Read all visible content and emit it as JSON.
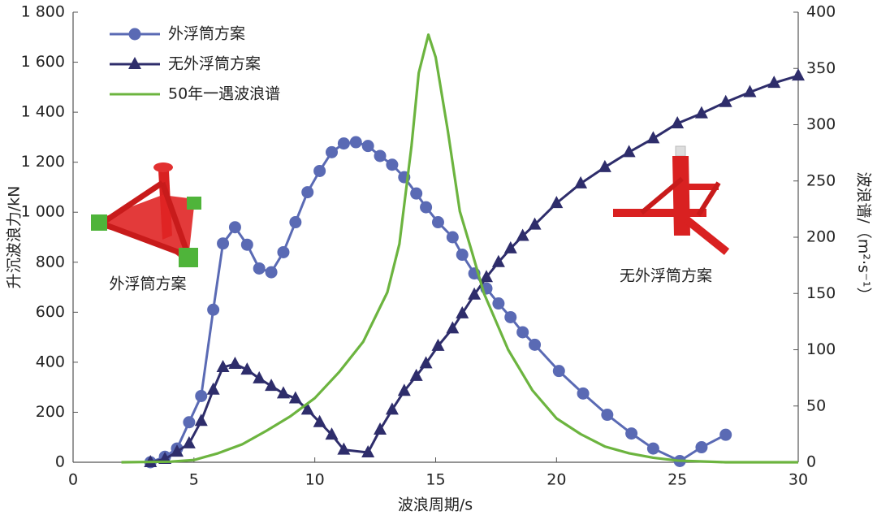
{
  "chart_data": {
    "type": "line",
    "xlabel": "波浪周期/s",
    "ylabel": "升沉波浪力/kN",
    "y2label": "波浪谱/（m²·s⁻¹）",
    "xlim": [
      0,
      30
    ],
    "xticks": [
      0,
      5,
      10,
      15,
      20,
      25,
      30
    ],
    "ylim": [
      0,
      1800
    ],
    "yticks": [
      0,
      200,
      400,
      600,
      800,
      {
        "value": 1000,
        "label": "1 000"
      },
      {
        "value": 1200,
        "label": "1 200"
      },
      {
        "value": 1400,
        "label": "1 400"
      },
      {
        "value": 1600,
        "label": "1 600"
      },
      {
        "value": 1800,
        "label": "1 800"
      }
    ],
    "y2lim": [
      0,
      400
    ],
    "y2ticks": [
      0,
      50,
      100,
      150,
      200,
      250,
      300,
      350,
      400
    ],
    "legend": "upper left",
    "grid": false,
    "series": [
      {
        "name": "外浮筒方案",
        "color": "#5a6ab4",
        "marker": "circle",
        "x": [
          3.2,
          3.8,
          4.3,
          4.8,
          5.3,
          5.8,
          6.2,
          6.7,
          7.2,
          7.7,
          8.2,
          8.7,
          9.2,
          9.7,
          10.2,
          10.7,
          11.2,
          11.7,
          12.2,
          12.7,
          13.2,
          13.7,
          14.2,
          14.6,
          15.1,
          15.7,
          16.1,
          16.6,
          17.1,
          17.6,
          18.1,
          18.6,
          19.1,
          20.1,
          21.1,
          22.1,
          23.1,
          24.0,
          25.1,
          26.0,
          27.0
        ],
        "values": [
          0,
          22,
          55,
          160,
          265,
          610,
          875,
          940,
          870,
          775,
          760,
          840,
          960,
          1080,
          1165,
          1240,
          1275,
          1280,
          1265,
          1225,
          1190,
          1140,
          1075,
          1020,
          960,
          900,
          830,
          755,
          695,
          635,
          580,
          520,
          470,
          365,
          275,
          190,
          115,
          55,
          5,
          60,
          110
        ]
      },
      {
        "name": "无外浮筒方案",
        "color": "#2e2d6b",
        "marker": "triangle",
        "x": [
          3.2,
          3.8,
          4.3,
          4.8,
          5.3,
          5.8,
          6.2,
          6.7,
          7.2,
          7.7,
          8.2,
          8.7,
          9.2,
          9.7,
          10.2,
          10.7,
          11.2,
          12.2,
          12.7,
          13.2,
          13.7,
          14.2,
          14.6,
          15.1,
          15.7,
          16.1,
          16.6,
          17.1,
          17.6,
          18.1,
          18.6,
          19.1,
          20.0,
          21.0,
          22.0,
          23.0,
          24.0,
          25.0,
          26.0,
          27.0,
          28.0,
          29.0,
          30.0
        ],
        "values": [
          0,
          13,
          42,
          75,
          165,
          290,
          380,
          393,
          370,
          335,
          305,
          275,
          255,
          210,
          160,
          110,
          50,
          39,
          130,
          210,
          285,
          345,
          395,
          465,
          535,
          595,
          670,
          740,
          800,
          855,
          905,
          950,
          1036,
          1115,
          1180,
          1240,
          1295,
          1355,
          1395,
          1440,
          1480,
          1517,
          1546
        ]
      },
      {
        "name": "50年一遇波浪谱",
        "color": "#6cb43f",
        "axis": "y2",
        "x": [
          2,
          4,
          5,
          6,
          7,
          8,
          9,
          10,
          11,
          12,
          13,
          13.5,
          14,
          14.3,
          14.7,
          15,
          15.5,
          16,
          16.5,
          17,
          18,
          19,
          20,
          21,
          22,
          23,
          24,
          25,
          27,
          30
        ],
        "values": [
          0,
          0.5,
          2,
          8,
          16,
          28,
          41,
          57,
          80,
          107,
          151,
          194,
          281,
          346,
          380,
          360,
          295,
          223,
          187,
          150,
          100,
          64,
          39,
          25,
          14,
          8,
          4,
          1.5,
          0,
          0
        ]
      }
    ],
    "annotations": [
      "外浮筒方案",
      "无外浮筒方案"
    ]
  }
}
